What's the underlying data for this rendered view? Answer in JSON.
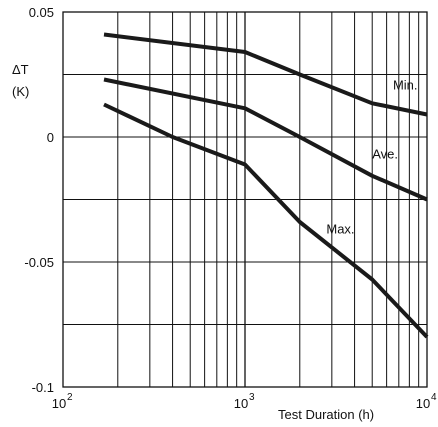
{
  "chart_data": {
    "type": "line",
    "title": "",
    "xlabel": "Test Duration (h)",
    "ylabel_lines": [
      "ΔT",
      "(K)"
    ],
    "xscale": "log",
    "xlim": [
      100,
      10000
    ],
    "ylim": [
      -0.1,
      0.05
    ],
    "grid": true,
    "x_ticks": [
      {
        "base": "10",
        "exp": "2"
      },
      {
        "base": "10",
        "exp": "3"
      },
      {
        "base": "10",
        "exp": "4"
      }
    ],
    "y_ticks": [
      {
        "value": 0.05,
        "label": "0.05"
      },
      {
        "value": 0,
        "label": "0"
      },
      {
        "value": -0.05,
        "label": "-0.05"
      },
      {
        "value": -0.1,
        "label": "-0.1"
      }
    ],
    "y_grid_values": [
      0.05,
      0.025,
      0,
      -0.025,
      -0.05,
      -0.075,
      -0.1
    ],
    "series": [
      {
        "name": "Min.",
        "x": [
          168,
          1000,
          2000,
          5000,
          10000
        ],
        "y": [
          0.041,
          0.034,
          0.025,
          0.0135,
          0.009
        ]
      },
      {
        "name": "Ave.",
        "x": [
          168,
          1000,
          2000,
          5000,
          10000
        ],
        "y": [
          0.023,
          0.0115,
          0.0,
          -0.0155,
          -0.025
        ]
      },
      {
        "name": "Max.",
        "x": [
          168,
          400,
          1000,
          2000,
          5000,
          10000
        ],
        "y": [
          0.013,
          0.0,
          -0.011,
          -0.034,
          -0.057,
          -0.08
        ]
      }
    ],
    "series_label_anchor": [
      {
        "x": 6500,
        "y": 0.019
      },
      {
        "x": 5000,
        "y": -0.0085
      },
      {
        "x": 2800,
        "y": -0.0385
      }
    ]
  }
}
